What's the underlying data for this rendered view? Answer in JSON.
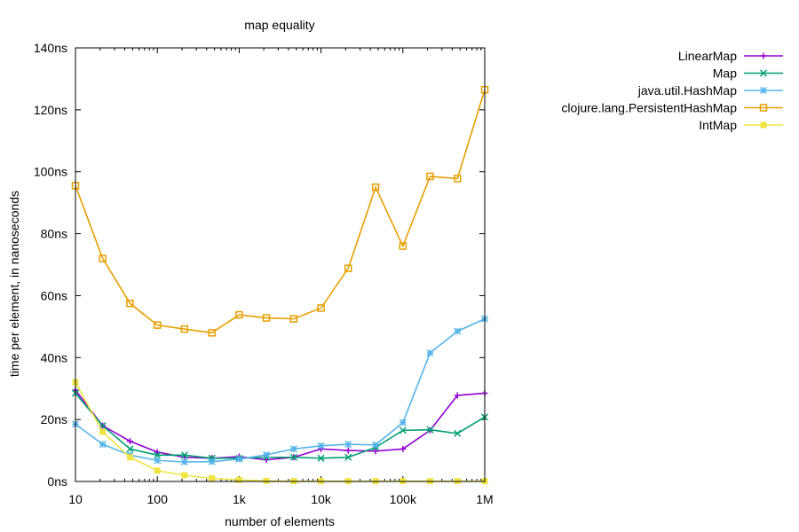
{
  "chart_data": {
    "type": "line",
    "title": "map equality",
    "xlabel": "number of elements",
    "ylabel": "time per element, in nanoseconds",
    "xscale": "log",
    "xlim": [
      10,
      1000000
    ],
    "ylim": [
      0,
      140
    ],
    "xticks": [
      {
        "value": 10,
        "label": "10"
      },
      {
        "value": 100,
        "label": "100"
      },
      {
        "value": 1000,
        "label": "1k"
      },
      {
        "value": 10000,
        "label": "10k"
      },
      {
        "value": 100000,
        "label": "100k"
      },
      {
        "value": 1000000,
        "label": "1M"
      }
    ],
    "yticks": [
      {
        "value": 0,
        "label": "0ns"
      },
      {
        "value": 20,
        "label": "20ns"
      },
      {
        "value": 40,
        "label": "40ns"
      },
      {
        "value": 60,
        "label": "60ns"
      },
      {
        "value": 80,
        "label": "80ns"
      },
      {
        "value": 100,
        "label": "100ns"
      },
      {
        "value": 120,
        "label": "120ns"
      },
      {
        "value": 140,
        "label": "140ns"
      }
    ],
    "grid": false,
    "legend_position": "top-right, outside plot",
    "x": [
      10,
      21.5,
      46.4,
      100,
      215,
      464,
      1000,
      2150,
      4640,
      10000,
      21500,
      46400,
      100000,
      215000,
      464000,
      1000000
    ],
    "series": [
      {
        "name": "LinearMap",
        "color": "#9400d3",
        "marker": "plus",
        "values": [
          29.5,
          18,
          13,
          9.5,
          7.8,
          7.5,
          8.0,
          7.0,
          7.8,
          10.5,
          10.0,
          9.8,
          10.5,
          16.5,
          27.8,
          28.5
        ]
      },
      {
        "name": "Map",
        "color": "#009e73",
        "marker": "cross",
        "values": [
          28.5,
          18,
          10.5,
          8.5,
          8.5,
          7.5,
          7.5,
          7.8,
          7.8,
          7.5,
          7.8,
          11.0,
          16.5,
          16.7,
          15.5,
          20.8
        ]
      },
      {
        "name": "java.util.HashMap",
        "color": "#56b4e9",
        "marker": "star",
        "values": [
          18.5,
          12,
          8.5,
          6.8,
          6.3,
          6.4,
          7.2,
          8.6,
          10.5,
          11.5,
          12.0,
          11.8,
          19.0,
          41.5,
          48.5,
          52.5
        ]
      },
      {
        "name": "clojure.lang.PersistentHashMap",
        "color": "#e69f00",
        "marker": "box",
        "values": [
          95.5,
          72,
          57.5,
          50.5,
          49.2,
          48.0,
          53.8,
          52.8,
          52.5,
          56.0,
          68.8,
          95.0,
          76.0,
          98.5,
          97.8,
          126.5
        ]
      },
      {
        "name": "IntMap",
        "color": "#f0e442",
        "marker": "filled-box",
        "values": [
          32,
          16,
          7.8,
          3.5,
          2.0,
          1.0,
          0.5,
          0.2,
          0.1,
          0.1,
          0.1,
          0.1,
          0.1,
          0.1,
          0.1,
          0.1
        ]
      }
    ]
  }
}
